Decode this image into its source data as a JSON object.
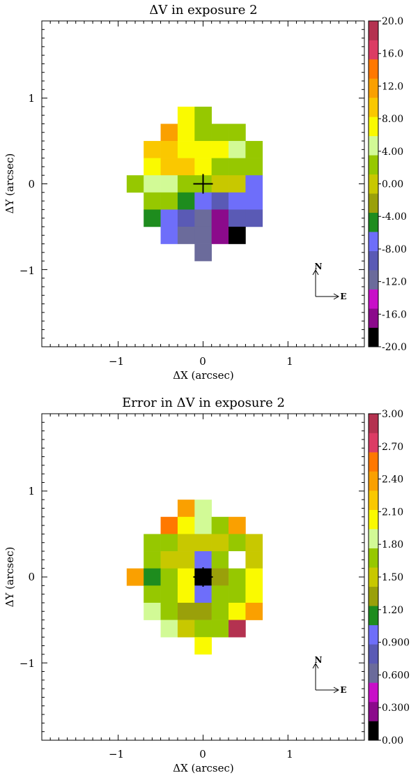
{
  "palette": [
    "#8b0a8b",
    "#c80fc8",
    "#6b6b9b",
    "#5a5ab5",
    "#6e6efa",
    "#1e8c1e",
    "#9aa00a",
    "#c8c800",
    "#96c800",
    "#d2fa96",
    "#fafa00",
    "#fac800",
    "#faa000",
    "#ff7800",
    "#dc3c64",
    "#b43250"
  ],
  "chart_data": [
    {
      "type": "heatmap",
      "title": "ΔV in exposure 2",
      "xlabel": "ΔX (arcsec)",
      "ylabel": "ΔY (arcsec)",
      "xlim": [
        -1.9,
        1.9
      ],
      "ylim": [
        -1.9,
        1.9
      ],
      "xticks": [
        "−1",
        "0",
        "1"
      ],
      "yticks": [
        "1",
        "0",
        "−1"
      ],
      "pixel_size_arcsec": 0.2,
      "colorbar": {
        "range": [
          -20,
          20
        ],
        "labels": [
          "20.0",
          "16.0",
          "12.0",
          "8.00",
          "4.00",
          "0.00",
          "-4.00",
          "-8.00",
          "-12.0",
          "-16.0",
          "-20.0"
        ]
      },
      "compass": {
        "north": "N",
        "east": "E"
      },
      "marker": "plus",
      "cells": [
        {
          "x": -0.2,
          "y": 0.8,
          "v": 6
        },
        {
          "x": 0.0,
          "y": 0.8,
          "v": 2
        },
        {
          "x": -0.4,
          "y": 0.6,
          "v": 11
        },
        {
          "x": -0.2,
          "y": 0.6,
          "v": 6
        },
        {
          "x": 0.0,
          "y": 0.6,
          "v": 2
        },
        {
          "x": 0.2,
          "y": 0.6,
          "v": 2
        },
        {
          "x": 0.4,
          "y": 0.6,
          "v": 2
        },
        {
          "x": -0.6,
          "y": 0.4,
          "v": 9
        },
        {
          "x": -0.4,
          "y": 0.4,
          "v": 9
        },
        {
          "x": -0.2,
          "y": 0.4,
          "v": 6
        },
        {
          "x": 0.0,
          "y": 0.4,
          "v": 6
        },
        {
          "x": 0.2,
          "y": 0.4,
          "v": 6
        },
        {
          "x": 0.4,
          "y": 0.4,
          "v": 4
        },
        {
          "x": 0.6,
          "y": 0.4,
          "v": 2
        },
        {
          "x": -0.6,
          "y": 0.2,
          "v": 6
        },
        {
          "x": -0.4,
          "y": 0.2,
          "v": 9
        },
        {
          "x": -0.2,
          "y": 0.2,
          "v": 9
        },
        {
          "x": 0.0,
          "y": 0.2,
          "v": 6
        },
        {
          "x": 0.2,
          "y": 0.2,
          "v": 2
        },
        {
          "x": 0.4,
          "y": 0.2,
          "v": 0
        },
        {
          "x": 0.6,
          "y": 0.2,
          "v": 0
        },
        {
          "x": -0.8,
          "y": 0.0,
          "v": 2
        },
        {
          "x": -0.6,
          "y": 0.0,
          "v": 4
        },
        {
          "x": -0.4,
          "y": 0.0,
          "v": 4
        },
        {
          "x": -0.2,
          "y": 0.0,
          "v": 2
        },
        {
          "x": 0.0,
          "y": 0.0,
          "v": 2
        },
        {
          "x": 0.2,
          "y": 0.0,
          "v": -2
        },
        {
          "x": 0.4,
          "y": 0.0,
          "v": -2
        },
        {
          "x": 0.6,
          "y": 0.0,
          "v": -9
        },
        {
          "x": -0.6,
          "y": -0.2,
          "v": 0
        },
        {
          "x": -0.4,
          "y": -0.2,
          "v": 0
        },
        {
          "x": -0.2,
          "y": -0.2,
          "v": -6
        },
        {
          "x": 0.0,
          "y": -0.2,
          "v": -9
        },
        {
          "x": 0.2,
          "y": -0.2,
          "v": -12
        },
        {
          "x": 0.4,
          "y": -0.2,
          "v": -9
        },
        {
          "x": 0.6,
          "y": -0.2,
          "v": -9
        },
        {
          "x": -0.6,
          "y": -0.4,
          "v": -6
        },
        {
          "x": -0.4,
          "y": -0.4,
          "v": -9
        },
        {
          "x": -0.2,
          "y": -0.4,
          "v": -12
        },
        {
          "x": 0.0,
          "y": -0.4,
          "v": -14
        },
        {
          "x": 0.2,
          "y": -0.4,
          "v": -19
        },
        {
          "x": 0.4,
          "y": -0.4,
          "v": -12
        },
        {
          "x": 0.6,
          "y": -0.4,
          "v": -12
        },
        {
          "x": -0.4,
          "y": -0.6,
          "v": -9
        },
        {
          "x": -0.2,
          "y": -0.6,
          "v": -14
        },
        {
          "x": 0.0,
          "y": -0.6,
          "v": -14
        },
        {
          "x": 0.2,
          "y": -0.6,
          "v": -19
        },
        {
          "x": 0.4,
          "y": -0.6,
          "v": -22
        },
        {
          "x": 0.0,
          "y": -0.8,
          "v": -14
        }
      ]
    },
    {
      "type": "heatmap",
      "title": "Error in ΔV in exposure 2",
      "xlabel": "ΔX (arcsec)",
      "ylabel": "ΔY (arcsec)",
      "xlim": [
        -1.9,
        1.9
      ],
      "ylim": [
        -1.9,
        1.9
      ],
      "xticks": [
        "−1",
        "0",
        "1"
      ],
      "yticks": [
        "1",
        "0",
        "−1"
      ],
      "pixel_size_arcsec": 0.2,
      "colorbar": {
        "range": [
          0,
          3
        ],
        "labels": [
          "3.00",
          "2.70",
          "2.40",
          "2.10",
          "1.80",
          "1.50",
          "1.20",
          "0.900",
          "0.600",
          "0.300",
          "0.00"
        ]
      },
      "compass": {
        "north": "N",
        "east": "E"
      },
      "marker": "plus",
      "cells": [
        {
          "x": -0.2,
          "y": 0.8,
          "v": 2.4
        },
        {
          "x": 0.0,
          "y": 0.8,
          "v": 1.7
        },
        {
          "x": -0.4,
          "y": 0.6,
          "v": 2.6
        },
        {
          "x": -0.2,
          "y": 0.6,
          "v": 2.0
        },
        {
          "x": 0.0,
          "y": 0.6,
          "v": 1.7
        },
        {
          "x": 0.2,
          "y": 0.6,
          "v": 1.5
        },
        {
          "x": 0.4,
          "y": 0.6,
          "v": 2.3
        },
        {
          "x": -0.6,
          "y": 0.4,
          "v": 1.5
        },
        {
          "x": -0.4,
          "y": 0.4,
          "v": 1.5
        },
        {
          "x": -0.2,
          "y": 0.4,
          "v": 1.4
        },
        {
          "x": 0.0,
          "y": 0.4,
          "v": 1.4
        },
        {
          "x": 0.2,
          "y": 0.4,
          "v": 1.4
        },
        {
          "x": 0.4,
          "y": 0.4,
          "v": 1.5
        },
        {
          "x": 0.6,
          "y": 0.4,
          "v": 1.4
        },
        {
          "x": -0.6,
          "y": 0.2,
          "v": 1.5
        },
        {
          "x": -0.4,
          "y": 0.2,
          "v": 1.4
        },
        {
          "x": -0.2,
          "y": 0.2,
          "v": 1.4
        },
        {
          "x": 0.0,
          "y": 0.2,
          "v": 0.8
        },
        {
          "x": 0.2,
          "y": 0.2,
          "v": 1.5
        },
        {
          "x": 0.4,
          "y": 0.2,
          "v": null
        },
        {
          "x": 0.6,
          "y": 0.2,
          "v": 1.4
        },
        {
          "x": -0.8,
          "y": 0.0,
          "v": 2.3
        },
        {
          "x": -0.6,
          "y": 0.0,
          "v": 1.0
        },
        {
          "x": -0.4,
          "y": 0.0,
          "v": 1.5
        },
        {
          "x": -0.2,
          "y": 0.0,
          "v": 1.9
        },
        {
          "x": 0.0,
          "y": 0.0,
          "v": -0.1
        },
        {
          "x": 0.2,
          "y": 0.0,
          "v": 1.3
        },
        {
          "x": 0.4,
          "y": 0.0,
          "v": 1.6
        },
        {
          "x": 0.6,
          "y": 0.0,
          "v": 2.0
        },
        {
          "x": -0.6,
          "y": -0.2,
          "v": 1.5
        },
        {
          "x": -0.4,
          "y": -0.2,
          "v": 1.5
        },
        {
          "x": -0.2,
          "y": -0.2,
          "v": 1.9
        },
        {
          "x": 0.0,
          "y": -0.2,
          "v": 0.8
        },
        {
          "x": 0.2,
          "y": -0.2,
          "v": 1.5
        },
        {
          "x": 0.4,
          "y": -0.2,
          "v": 1.6
        },
        {
          "x": 0.6,
          "y": -0.2,
          "v": 2.0
        },
        {
          "x": -0.6,
          "y": -0.4,
          "v": 1.7
        },
        {
          "x": -0.4,
          "y": -0.4,
          "v": 1.5
        },
        {
          "x": -0.2,
          "y": -0.4,
          "v": 1.3
        },
        {
          "x": 0.0,
          "y": -0.4,
          "v": 1.3
        },
        {
          "x": 0.2,
          "y": -0.4,
          "v": 1.5
        },
        {
          "x": 0.4,
          "y": -0.4,
          "v": 2.0
        },
        {
          "x": 0.6,
          "y": -0.4,
          "v": 2.3
        },
        {
          "x": -0.4,
          "y": -0.6,
          "v": 1.7
        },
        {
          "x": -0.2,
          "y": -0.6,
          "v": 1.4
        },
        {
          "x": 0.0,
          "y": -0.6,
          "v": 1.5
        },
        {
          "x": 0.2,
          "y": -0.6,
          "v": 1.5
        },
        {
          "x": 0.4,
          "y": -0.6,
          "v": 2.9
        },
        {
          "x": 0.0,
          "y": -0.8,
          "v": 2.0
        }
      ]
    }
  ]
}
